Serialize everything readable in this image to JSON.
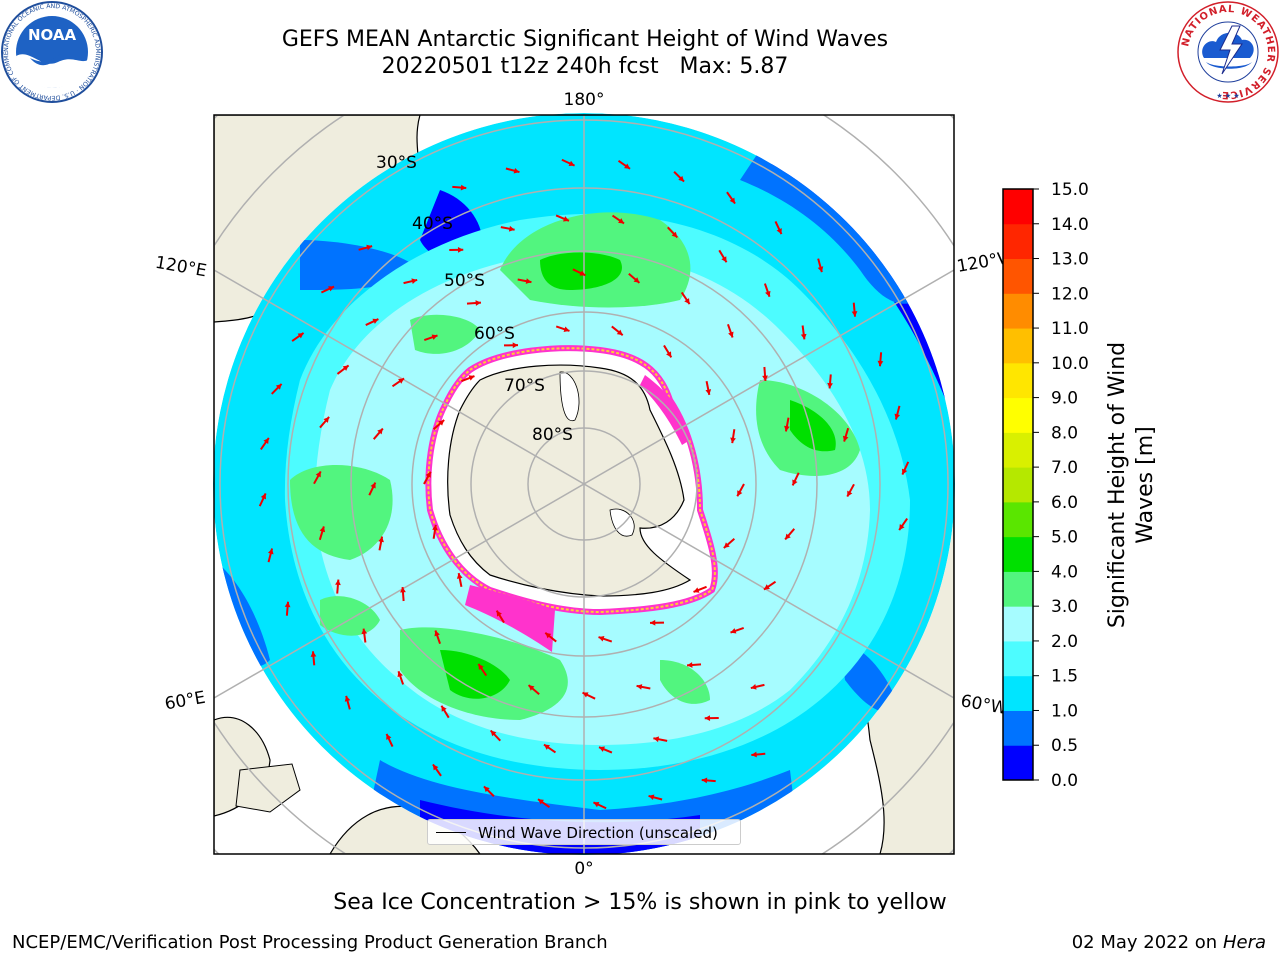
{
  "title": {
    "line1": "GEFS MEAN Antarctic Significant Height of Wind Waves",
    "line2": "20220501 t12z 240h fcst   Max: 5.87"
  },
  "logos": {
    "noaa_text": "NOAA",
    "nws_text": "NATIONAL WEATHER SERVICE",
    "noaa_ring_text": "NATIONAL OCEANIC AND ATMOSPHERIC ADMINISTRATION · U.S. DEPARTMENT OF COMMERCE"
  },
  "map": {
    "projection": "south-polar-stereographic",
    "longitude_labels": {
      "top": "180°",
      "bottom": "0°",
      "upper_left": "120°E",
      "lower_left": "60°E",
      "upper_right": "120°W",
      "lower_right": "60°W"
    },
    "latitude_labels": [
      "30°S",
      "40°S",
      "50°S",
      "60°S",
      "70°S",
      "80°S"
    ],
    "colors": {
      "land": "#efedde",
      "ice_pink": "#ff33cc",
      "ice_yellow": "#ffcc33",
      "grid": "#b0b0b0",
      "arrow": "#ee0000"
    }
  },
  "legend": {
    "label": "Wind Wave Direction (unscaled)"
  },
  "colorbar": {
    "label_line1": "Significant Height of Wind",
    "label_line2": "Waves [m]",
    "ticks": [
      "0.0",
      "0.5",
      "1.0",
      "1.5",
      "2.0",
      "3.0",
      "4.0",
      "5.0",
      "6.0",
      "7.0",
      "8.0",
      "9.0",
      "10.0",
      "11.0",
      "12.0",
      "13.0",
      "14.0",
      "15.0"
    ],
    "colors": [
      "#0000ff",
      "#0073ff",
      "#00e5ff",
      "#4dfcff",
      "#a6fcff",
      "#52f57f",
      "#00e000",
      "#5ae600",
      "#b5e800",
      "#d9f000",
      "#ffff00",
      "#ffe600",
      "#ffbf00",
      "#ff8c00",
      "#ff5500",
      "#ff2600",
      "#ff0000"
    ]
  },
  "caption": "Sea Ice Concentration > 15% is shown in pink to yellow",
  "footer": {
    "left": "NCEP/EMC/Verification Post Processing Product Generation Branch",
    "right_date": "02 May 2022 on",
    "right_host": "Hera"
  }
}
